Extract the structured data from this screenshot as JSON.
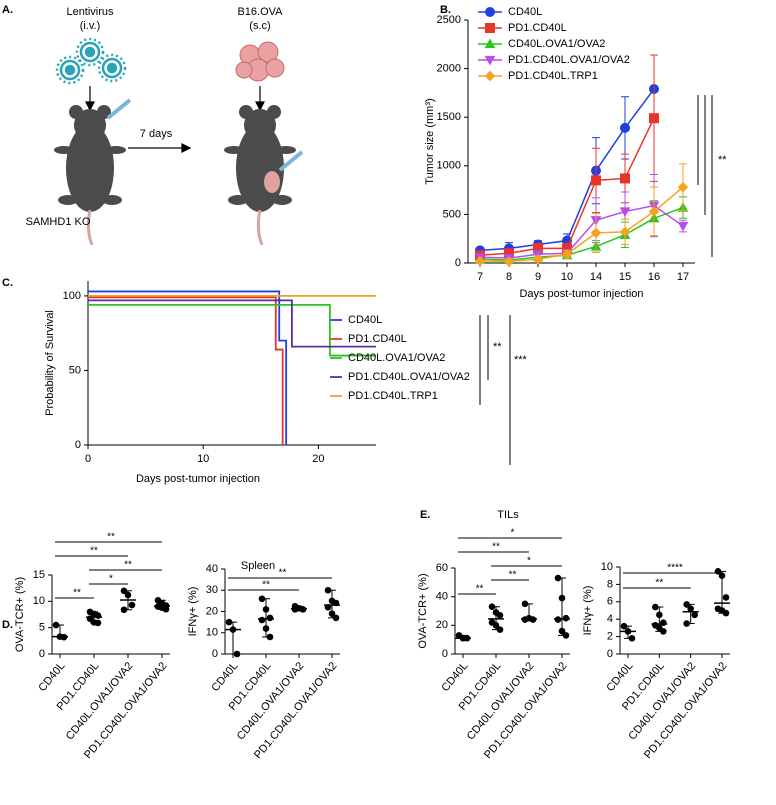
{
  "diagram": {
    "panel": "A.",
    "virus": "Lentivirus",
    "virus_route": "(i.v.)",
    "tumor": "B16.OVA",
    "tumor_route": "(s.c)",
    "interval": "7 days",
    "strain": "SAMHD1 KO"
  },
  "chart_data": [
    {
      "type": "line",
      "panel": "B.",
      "x_label": "Days post-tumor injection",
      "y_label": "Tumor size (mm³)",
      "categories": [
        "7",
        "8",
        "9",
        "10",
        "14",
        "15",
        "16",
        "17"
      ],
      "ylim": [
        0,
        2500
      ],
      "yticks": [
        0,
        500,
        1000,
        1500,
        2000,
        2500
      ],
      "series": [
        {
          "name": "CD40L",
          "color": "#1f3fe0",
          "marker": "circle",
          "values": [
            130,
            150,
            190,
            230,
            950,
            1390,
            1790,
            null
          ],
          "errors": [
            30,
            60,
            40,
            70,
            340,
            320,
            0,
            null
          ]
        },
        {
          "name": "PD1.CD40L",
          "color": "#e8352a",
          "marker": "square",
          "values": [
            80,
            100,
            150,
            150,
            850,
            870,
            1490,
            null
          ],
          "errors": [
            30,
            40,
            50,
            50,
            330,
            250,
            650,
            null
          ]
        },
        {
          "name": "CD40L.OVA1/OVA2",
          "color": "#2ec41e",
          "marker": "triangle",
          "values": [
            40,
            30,
            60,
            80,
            170,
            290,
            460,
            570
          ],
          "errors": [
            20,
            20,
            30,
            20,
            60,
            130,
            180,
            110
          ]
        },
        {
          "name": "PD1.CD40L.OVA1/OVA2",
          "color": "#b94de8",
          "marker": "triangle-down",
          "values": [
            60,
            50,
            90,
            100,
            440,
            530,
            590,
            380
          ],
          "errors": [
            30,
            20,
            30,
            30,
            230,
            200,
            320,
            60
          ]
        },
        {
          "name": "PD1.CD40L.TRP1",
          "color": "#f4a21f",
          "marker": "diamond",
          "values": [
            20,
            15,
            40,
            90,
            310,
            320,
            530,
            780
          ],
          "errors": [
            10,
            10,
            20,
            40,
            200,
            130,
            250,
            240
          ]
        }
      ],
      "significance": [
        "**"
      ]
    },
    {
      "type": "step",
      "panel": "C.",
      "x_label": "Days post-tumor injection",
      "y_label": "Probability of Survival",
      "xlim": [
        0,
        25
      ],
      "xticks": [
        0,
        10,
        20
      ],
      "ylim": [
        0,
        110
      ],
      "yticks": [
        0,
        50,
        100
      ],
      "series": [
        {
          "name": "CD40L",
          "color": "#1f3fe0",
          "x": [
            0,
            16.6,
            17.2
          ],
          "values": [
            103,
            70,
            0
          ]
        },
        {
          "name": "PD1.CD40L",
          "color": "#e8352a",
          "x": [
            0,
            16.3,
            16.9
          ],
          "values": [
            99,
            64,
            0
          ]
        },
        {
          "name": "CD40L.OVA1/OVA2",
          "color": "#2ec41e",
          "x": [
            0,
            21,
            25
          ],
          "values": [
            94,
            60,
            60
          ]
        },
        {
          "name": "PD1.CD40L.OVA1/OVA2",
          "color": "#5b2ca0",
          "x": [
            0,
            17.7,
            25
          ],
          "values": [
            97,
            66,
            66
          ]
        },
        {
          "name": "PD1.CD40L.TRP1",
          "color": "#f4a21f",
          "x": [
            0,
            25
          ],
          "values": [
            100,
            100
          ]
        }
      ],
      "significance": [
        "**",
        "***"
      ]
    },
    {
      "type": "dot",
      "panel": "D.",
      "title": "Spleen",
      "y_label": "OVA-TCR+ (%)",
      "ylim": [
        0,
        15
      ],
      "yticks": [
        0,
        5,
        10,
        15
      ],
      "categories": [
        "CD40L",
        "PD1.CD40L",
        "CD40L.OVA1/OVA2",
        "PD1.CD40L.OVA1/OVA2"
      ],
      "groups": [
        [
          5.5,
          3.3,
          3.2
        ],
        [
          8.0,
          7.6,
          7.3,
          6.7,
          6.0,
          5.9
        ],
        [
          12,
          11.2,
          9.3,
          8.4
        ],
        [
          10.2,
          9.6,
          9.2,
          9.0,
          8.8,
          8.5
        ]
      ],
      "comparisons": [
        {
          "groups": [
            0,
            1
          ],
          "label": "**"
        },
        {
          "groups": [
            1,
            2
          ],
          "label": "*"
        },
        {
          "groups": [
            1,
            3
          ],
          "label": "**"
        },
        {
          "groups": [
            0,
            2
          ],
          "label": "**"
        },
        {
          "groups": [
            0,
            3
          ],
          "label": "**"
        }
      ]
    },
    {
      "type": "dot",
      "y_label": "IFNγ+ (%)",
      "ylim": [
        0,
        40
      ],
      "yticks": [
        0,
        10,
        20,
        30,
        40
      ],
      "categories": [
        "CD40L",
        "PD1.CD40L",
        "CD40L.OVA1/OVA2",
        "PD1.CD40L.OVA1/OVA2"
      ],
      "groups": [
        [
          15,
          11.5,
          0
        ],
        [
          26,
          21,
          17,
          16,
          12,
          8
        ],
        [
          22.5,
          21.5,
          21,
          21
        ],
        [
          30,
          25,
          24,
          22,
          19,
          17
        ]
      ],
      "comparisons": [
        {
          "groups": [
            0,
            2
          ],
          "label": "**"
        },
        {
          "groups": [
            0,
            3
          ],
          "label": "**"
        }
      ]
    },
    {
      "type": "dot",
      "panel": "E.",
      "title": "TILs",
      "y_label": "OVA-TCR+ (%)",
      "ylim": [
        0,
        60
      ],
      "yticks": [
        0,
        20,
        40,
        60
      ],
      "categories": [
        "CD40L",
        "PD1.CD40L",
        "CD40L.OVA1/OVA2",
        "PD1.CD40L.OVA1/OVA2"
      ],
      "groups": [
        [
          13,
          11,
          11
        ],
        [
          33,
          29,
          27,
          22,
          20,
          17
        ],
        [
          35,
          25,
          24,
          24
        ],
        [
          53,
          39,
          25,
          24,
          16,
          13
        ]
      ],
      "comparisons": [
        {
          "groups": [
            0,
            1
          ],
          "label": "**"
        },
        {
          "groups": [
            1,
            2
          ],
          "label": "**"
        },
        {
          "groups": [
            1,
            3
          ],
          "label": "*"
        },
        {
          "groups": [
            0,
            2
          ],
          "label": "**"
        },
        {
          "groups": [
            0,
            3
          ],
          "label": "*"
        }
      ]
    },
    {
      "type": "dot",
      "y_label": "IFNγ+ (%)",
      "ylim": [
        0,
        10
      ],
      "yticks": [
        0,
        2,
        4,
        6,
        8,
        10
      ],
      "categories": [
        "CD40L",
        "PD1.CD40L",
        "CD40L.OVA1/OVA2",
        "PD1.CD40L.OVA1/OVA2"
      ],
      "groups": [
        [
          3.2,
          2.6,
          1.8
        ],
        [
          5.4,
          4.5,
          3.6,
          3.3,
          3.0,
          2.6
        ],
        [
          5.7,
          5.2,
          4.5,
          3.5
        ],
        [
          9.5,
          9.0,
          6.5,
          5.2,
          5.0,
          4.7
        ]
      ],
      "comparisons": [
        {
          "groups": [
            0,
            2
          ],
          "label": "**"
        },
        {
          "groups": [
            0,
            3
          ],
          "label": "****"
        }
      ]
    }
  ]
}
